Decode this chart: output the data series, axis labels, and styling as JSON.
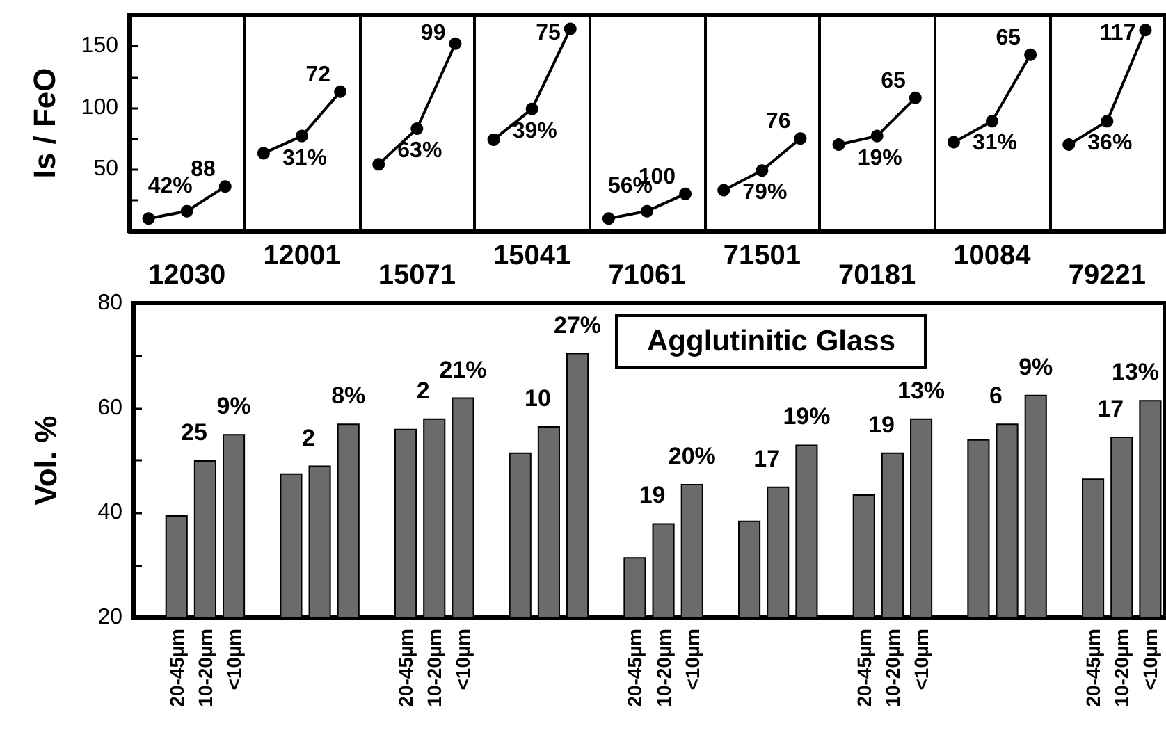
{
  "chart_data": [
    {
      "type": "line",
      "ylabel": "Is / FeO",
      "categories": [
        null,
        "12030",
        null,
        null,
        "12001",
        null,
        null,
        "15071",
        null,
        null,
        "15041",
        null,
        null,
        "71061",
        null,
        null,
        "71501",
        null,
        null,
        "70181",
        null,
        null,
        "10084",
        null,
        null,
        "79221",
        null
      ],
      "ylim": [
        0,
        175
      ],
      "yticks": [
        {
          "value": 25,
          "label": null
        },
        50,
        {
          "value": 75,
          "label": null
        },
        100,
        {
          "value": 125,
          "label": null
        },
        150
      ],
      "grid": "x",
      "marker": "circle",
      "line_style": "solid",
      "series": [
        {
          "color": "#000000",
          "values": [
            10,
            16,
            36,
            null,
            null,
            null,
            null,
            null,
            null,
            null,
            null,
            null,
            null,
            null,
            null,
            null,
            null,
            null,
            null,
            null,
            null,
            null,
            null,
            null,
            null,
            null,
            null
          ]
        },
        {
          "color": "#000000",
          "values": [
            null,
            null,
            null,
            63,
            77,
            113,
            null,
            null,
            null,
            null,
            null,
            null,
            null,
            null,
            null,
            null,
            null,
            null,
            null,
            null,
            null,
            null,
            null,
            null,
            null,
            null,
            null
          ]
        },
        {
          "color": "#000000",
          "values": [
            null,
            null,
            null,
            null,
            null,
            null,
            54,
            83,
            152,
            null,
            null,
            null,
            null,
            null,
            null,
            null,
            null,
            null,
            null,
            null,
            null,
            null,
            null,
            null,
            null,
            null,
            null
          ]
        },
        {
          "color": "#000000",
          "values": [
            null,
            null,
            null,
            null,
            null,
            null,
            null,
            null,
            null,
            74,
            99,
            164,
            null,
            null,
            null,
            null,
            null,
            null,
            null,
            null,
            null,
            null,
            null,
            null,
            null,
            null,
            null
          ]
        },
        {
          "color": "#000000",
          "values": [
            null,
            null,
            null,
            null,
            null,
            null,
            null,
            null,
            null,
            null,
            null,
            null,
            10,
            16,
            30,
            null,
            null,
            null,
            null,
            null,
            null,
            null,
            null,
            null,
            null,
            null,
            null
          ]
        },
        {
          "color": "#000000",
          "values": [
            null,
            null,
            null,
            null,
            null,
            null,
            null,
            null,
            null,
            null,
            null,
            null,
            null,
            null,
            null,
            33,
            49,
            75,
            null,
            null,
            null,
            null,
            null,
            null,
            null,
            null,
            null
          ]
        },
        {
          "color": "#000000",
          "values": [
            null,
            null,
            null,
            null,
            null,
            null,
            null,
            null,
            null,
            null,
            null,
            null,
            null,
            null,
            null,
            null,
            null,
            null,
            70,
            77,
            108,
            null,
            null,
            null,
            null,
            null,
            null
          ]
        },
        {
          "color": "#000000",
          "values": [
            null,
            null,
            null,
            null,
            null,
            null,
            null,
            null,
            null,
            null,
            null,
            null,
            null,
            null,
            null,
            null,
            null,
            null,
            null,
            null,
            null,
            72,
            89,
            143,
            null,
            null,
            null
          ]
        },
        {
          "color": "#000000",
          "values": [
            null,
            null,
            null,
            null,
            null,
            null,
            null,
            null,
            null,
            null,
            null,
            null,
            null,
            null,
            null,
            null,
            null,
            null,
            null,
            null,
            null,
            null,
            null,
            null,
            70,
            89,
            163
          ]
        }
      ],
      "annotations": [
        "42%",
        "88",
        "31%",
        "72",
        "63%",
        "99",
        "39%",
        "75",
        "56%",
        "100",
        "79%",
        "76",
        "19%",
        "65",
        "31%",
        "65",
        "36%",
        "117"
      ]
    },
    {
      "type": "bar",
      "title": "Agglutinitic Glass",
      "ylabel": "Vol. %",
      "categories": [
        null,
        "20-45µm",
        "10-20µm",
        "<10µm",
        null,
        null,
        null,
        null,
        null,
        "20-45µm",
        "10-20µm",
        "<10µm",
        null,
        null,
        null,
        null,
        null,
        "20-45µm",
        "10-20µm",
        "<10µm",
        null,
        null,
        null,
        null,
        null,
        "20-45µm",
        "10-20µm",
        "<10µm",
        null,
        null,
        null,
        null,
        null,
        "20-45µm",
        "10-20µm",
        "<10µm"
      ],
      "values": [
        null,
        39.5,
        50,
        55,
        null,
        47.5,
        49,
        57,
        null,
        56,
        58,
        62,
        null,
        51.5,
        56.5,
        70.5,
        null,
        31.5,
        38,
        45.5,
        null,
        38.5,
        45,
        53,
        null,
        43.5,
        51.5,
        58,
        null,
        54,
        57,
        62.5,
        null,
        46.5,
        54.5,
        61.5
      ],
      "color": "#6b6b6b",
      "ylim": [
        20,
        80
      ],
      "yticks": [
        20,
        {
          "value": 30,
          "label": null
        },
        40,
        {
          "value": 50,
          "label": null
        },
        60,
        {
          "value": 70,
          "label": null
        },
        80
      ],
      "annotations": [
        "25",
        "9%",
        "2",
        "8%",
        "2",
        "21%",
        "10",
        "27%",
        "19",
        "20%",
        "17",
        "19%",
        "19",
        "13%",
        "6",
        "9%",
        "17",
        "13%"
      ]
    }
  ]
}
